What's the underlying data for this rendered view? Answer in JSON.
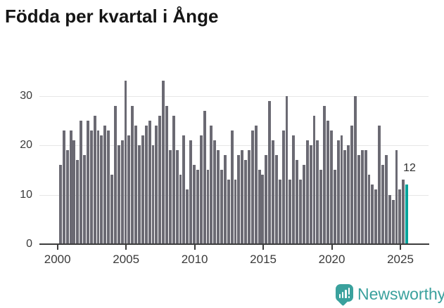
{
  "title": "Födda per kvartal i Ånge",
  "chart_data": {
    "type": "bar",
    "title": "Födda per kvartal i Ånge",
    "start_period": "2000-Q1",
    "frequency": "quarterly",
    "values": [
      16,
      23,
      19,
      23,
      21,
      17,
      25,
      18,
      25,
      23,
      26,
      23,
      22,
      24,
      23,
      14,
      28,
      20,
      21,
      33,
      22,
      28,
      24,
      20,
      22,
      24,
      25,
      20,
      24,
      26,
      33,
      28,
      19,
      26,
      19,
      14,
      22,
      11,
      21,
      16,
      15,
      22,
      27,
      15,
      24,
      21,
      19,
      15,
      18,
      13,
      23,
      13,
      18,
      19,
      17,
      19,
      23,
      24,
      15,
      14,
      18,
      29,
      21,
      18,
      13,
      23,
      30,
      13,
      22,
      17,
      13,
      16,
      21,
      20,
      26,
      21,
      15,
      28,
      25,
      23,
      15,
      21,
      22,
      19,
      20,
      24,
      30,
      18,
      19,
      19,
      14,
      12,
      11,
      24,
      16,
      18,
      10,
      9,
      19,
      11,
      13,
      12
    ],
    "x_tick_labels": [
      "2000",
      "2005",
      "2010",
      "2015",
      "2020",
      "2025"
    ],
    "y_ticks": [
      0,
      10,
      20,
      30
    ],
    "ylim": [
      0,
      34.5
    ],
    "grid": true,
    "bar_color": "#6b6a73",
    "highlight_color": "#00a39b",
    "highlight_index": 101,
    "highlight_label": "12",
    "legend": "none"
  },
  "logo": {
    "text": "Newsworthy",
    "brand_color": "#3aa19d",
    "icon": "bar-chart-exclamation-speech-bubble"
  }
}
